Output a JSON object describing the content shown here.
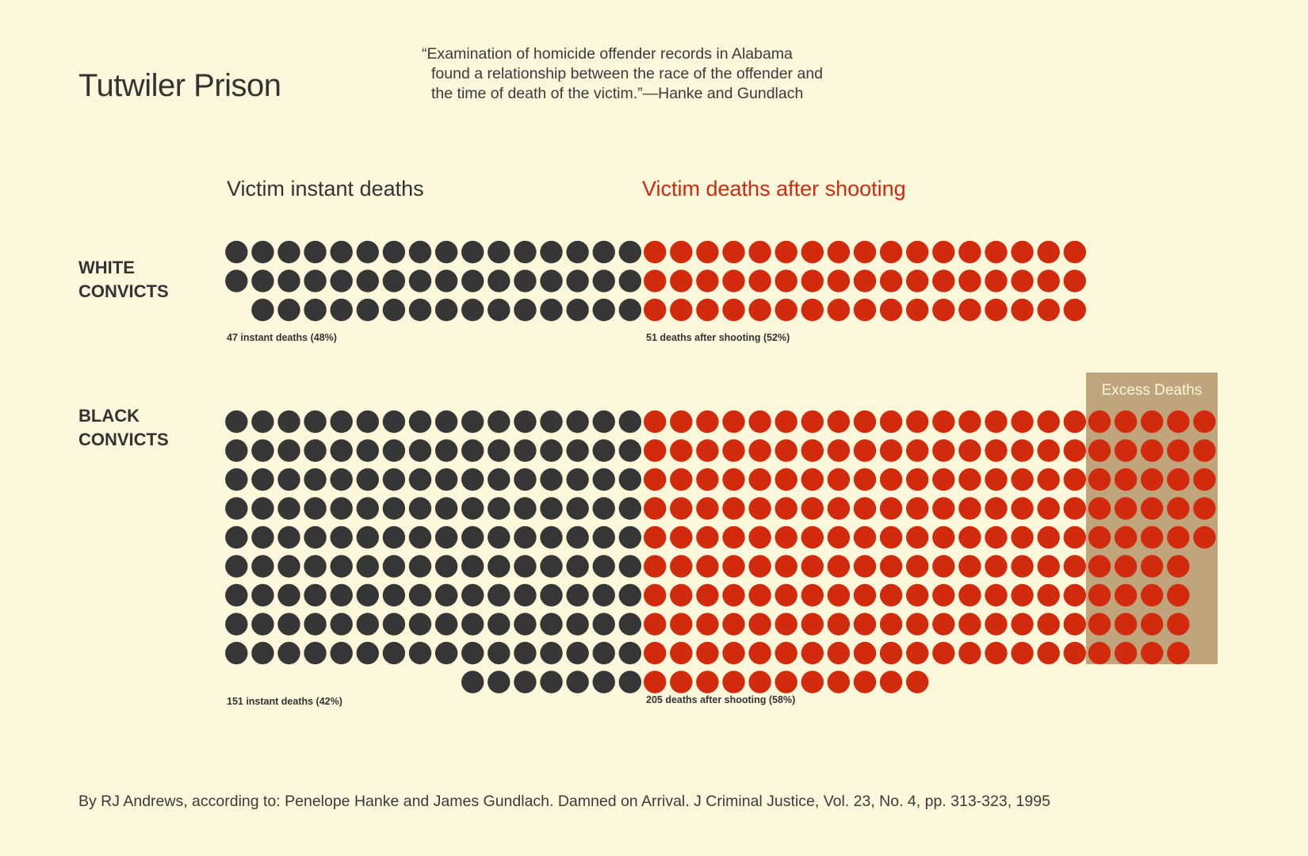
{
  "title": "Tutwiler Prison",
  "quote": {
    "line1": "“Examination of homicide offender records in Alabama",
    "line2": "found a relationship between the race of the offender and",
    "line3": "the time of death of the victim.”—Hanke and Gundlach"
  },
  "source": "By RJ Andrews, according to: Penelope Hanke and James Gundlach. Damned on Arrival. J Criminal Justice, Vol. 23, No. 4, pp. 313-323, 1995",
  "colors": {
    "instant": "#363636",
    "after": "#d22a0c",
    "excess_box": "#bfa47c",
    "background": "#fdf7dc"
  },
  "chart_data": {
    "type": "unit-dot-waffle",
    "categories": [
      "Victim instant deaths",
      "Victim deaths after shooting"
    ],
    "annotation": "Excess Deaths",
    "groups": [
      {
        "name": "WHITE CONVICTS",
        "label_line1": "WHITE",
        "label_line2": "CONVICTS",
        "instant": 47,
        "after": 51,
        "instant_label": "47 instant deaths (48%)",
        "after_label": "51 deaths after shooting (52%)",
        "excess": 0
      },
      {
        "name": "BLACK CONVICTS",
        "label_line1": "BLACK",
        "label_line2": "CONVICTS",
        "instant": 151,
        "after": 205,
        "instant_label": "151 instant deaths (42%)",
        "after_label": "205 deaths after shooting (58%)",
        "excess": 41
      }
    ]
  }
}
